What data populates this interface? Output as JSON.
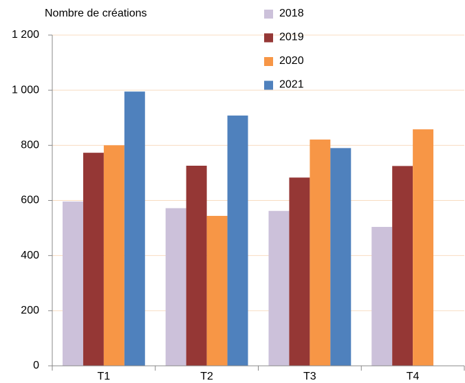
{
  "chart_data": {
    "type": "bar",
    "y_label": "Nombre de créations",
    "categories": [
      "T1",
      "T2",
      "T3",
      "T4"
    ],
    "series": [
      {
        "name": "2018",
        "color": "#ccc1da",
        "values": [
          596,
          572,
          562,
          504
        ]
      },
      {
        "name": "2019",
        "color": "#953735",
        "values": [
          773,
          726,
          683,
          725
        ]
      },
      {
        "name": "2020",
        "color": "#f79646",
        "values": [
          800,
          544,
          821,
          858
        ]
      },
      {
        "name": "2021",
        "color": "#4f81bd",
        "values": [
          995,
          908,
          790,
          null
        ]
      }
    ],
    "ylim": [
      0,
      1200
    ],
    "yticks": [
      0,
      200,
      400,
      600,
      800,
      {
        "value": 1000,
        "label": "1 000"
      },
      {
        "value": 1200,
        "label": "1 200"
      }
    ],
    "grid": true,
    "legend": "top"
  }
}
